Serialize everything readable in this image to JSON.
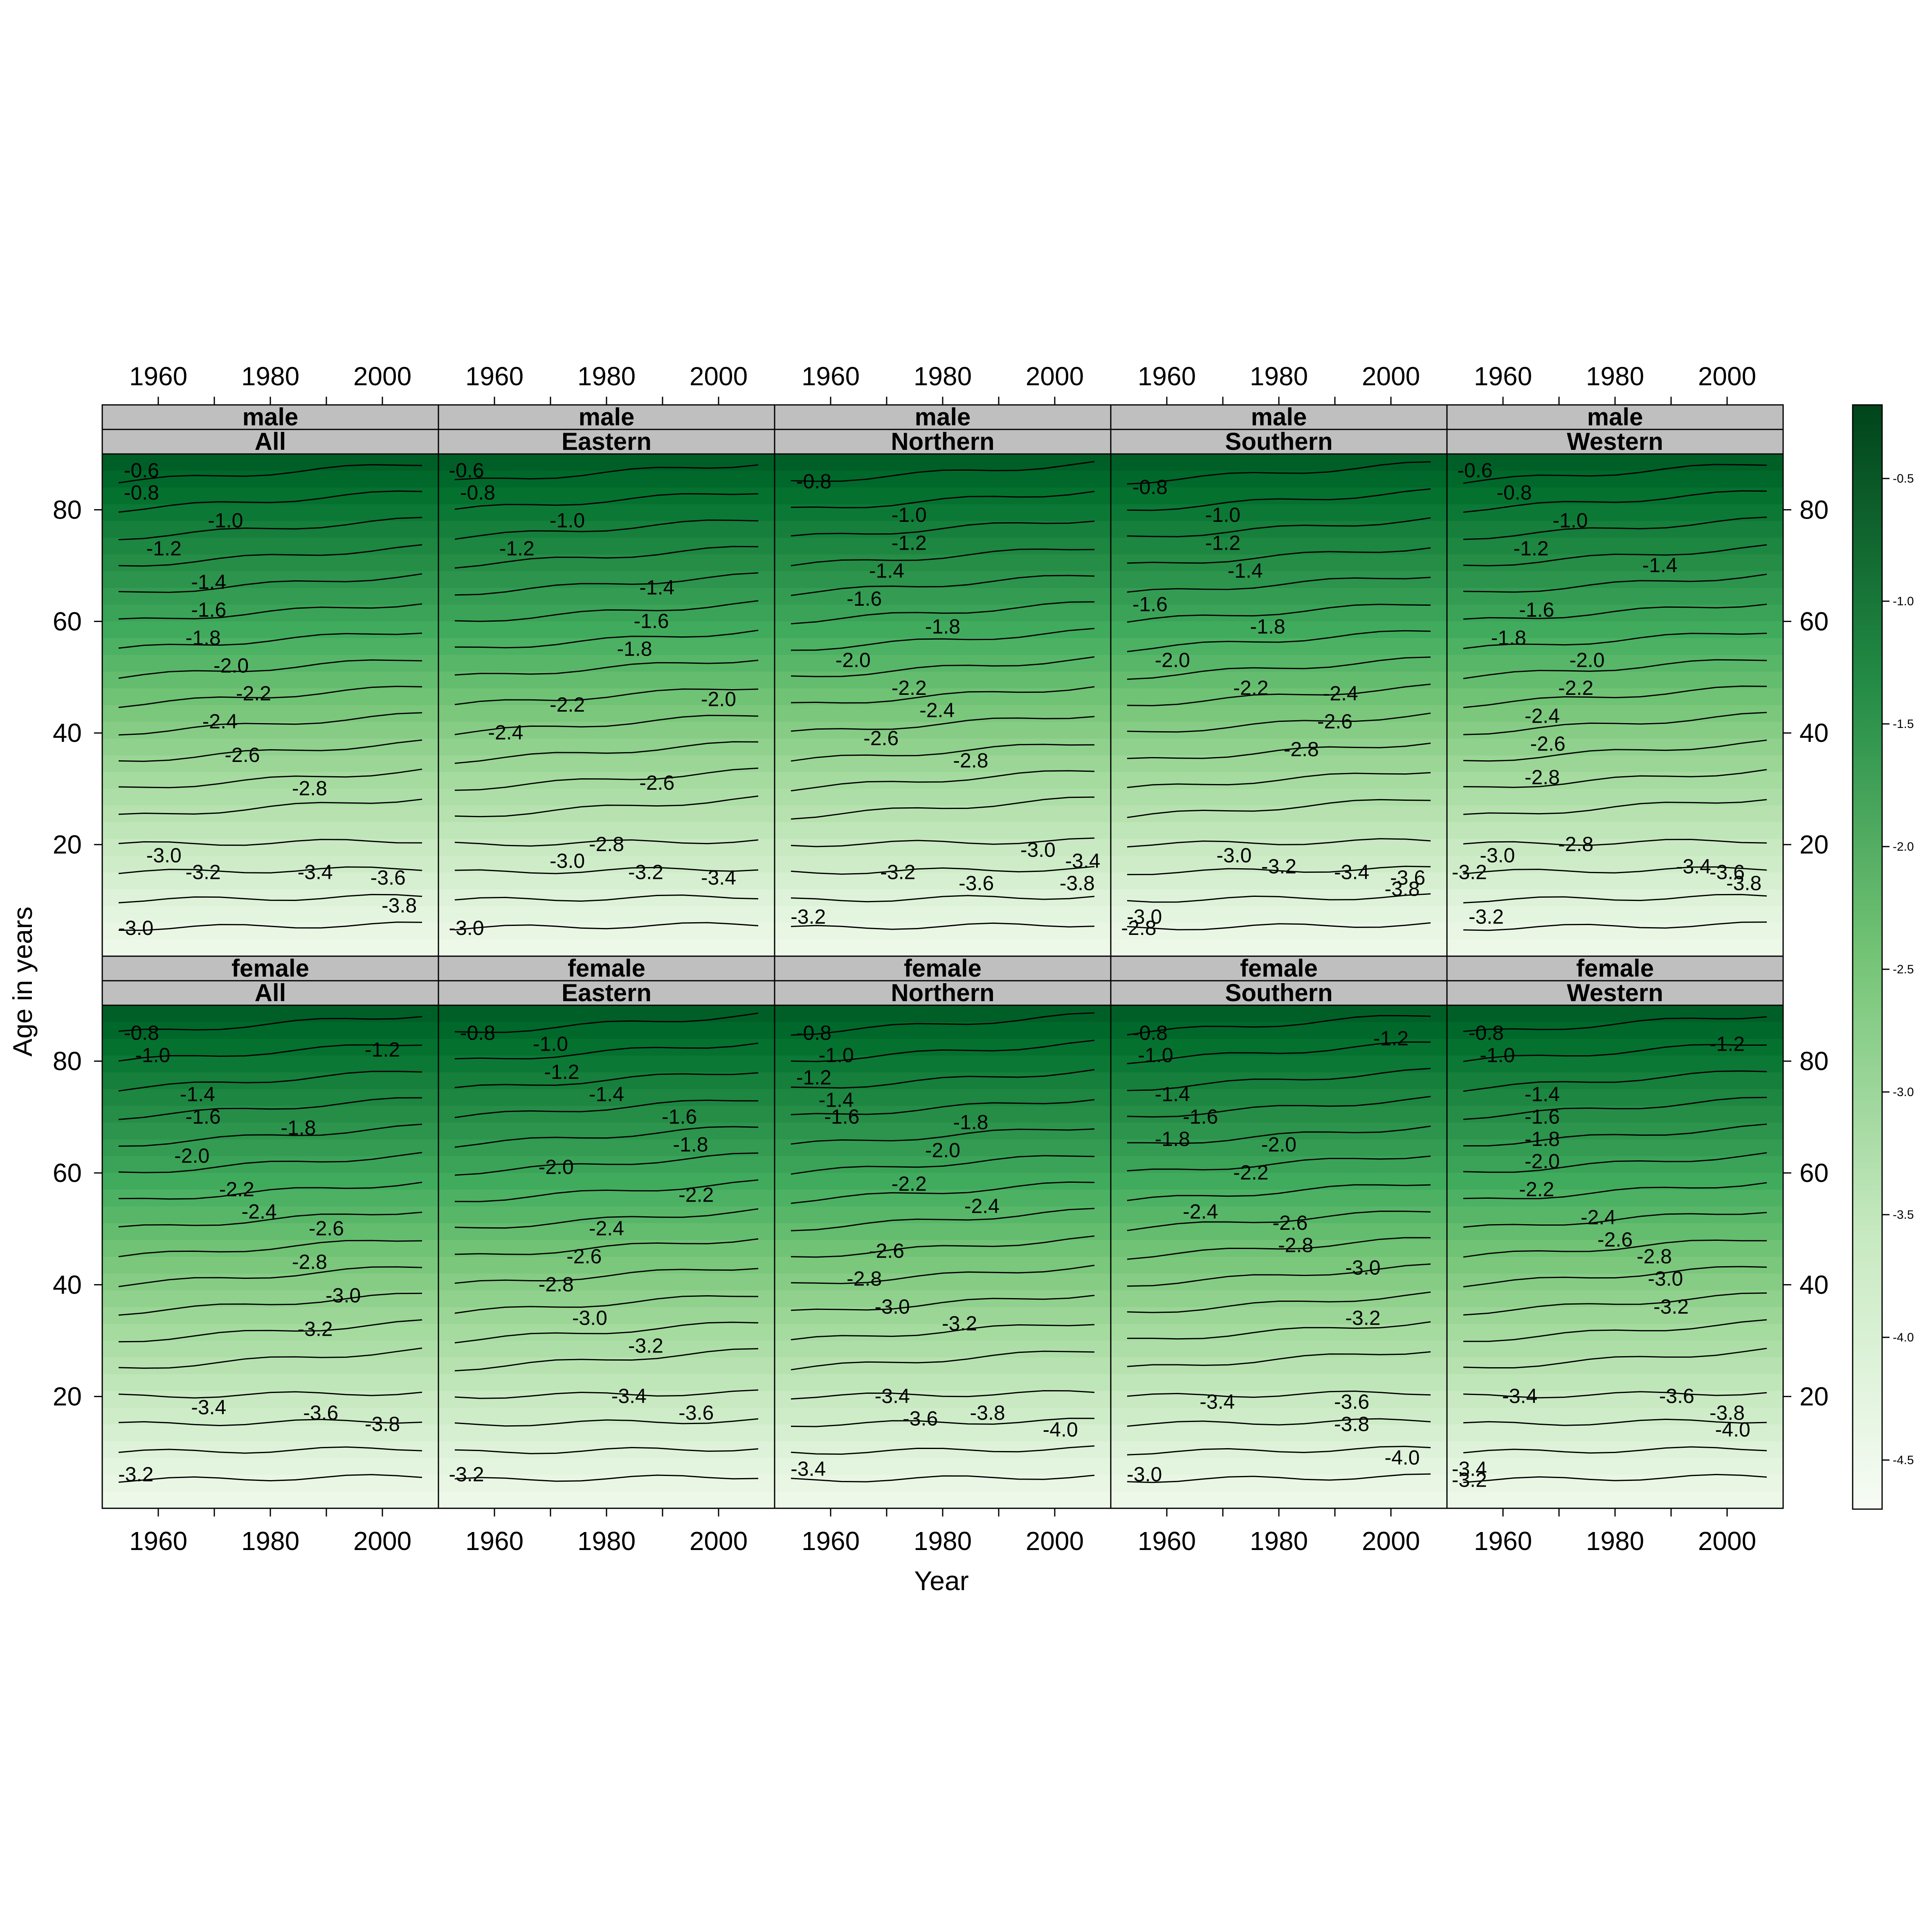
{
  "chart_data": {
    "type": "heatmap",
    "xlabel": "Year",
    "ylabel": "Age in years",
    "xlim": [
      1950,
      2010
    ],
    "ylim": [
      0,
      90
    ],
    "x_ticks": [
      "1960",
      "1980",
      "2000"
    ],
    "y_ticks": [
      "20",
      "40",
      "60",
      "80"
    ],
    "legend": {
      "position": "right",
      "ticks": [
        "-0.5",
        "-1.0",
        "-1.5",
        "-2.0",
        "-2.5",
        "-3.0",
        "-3.5",
        "-4.0",
        "-4.5"
      ],
      "range": [
        -4.7,
        -0.2
      ],
      "color_low": "#f7fcf5",
      "color_high": "#00441b"
    },
    "panels": [
      {
        "sex": "male",
        "region": "All",
        "contour_labels": [
          {
            "label": "-0.6",
            "year": 1957,
            "age": 87
          },
          {
            "label": "-0.8",
            "year": 1957,
            "age": 83
          },
          {
            "label": "-1.0",
            "year": 1972,
            "age": 78
          },
          {
            "label": "-1.2",
            "year": 1961,
            "age": 73
          },
          {
            "label": "-1.4",
            "year": 1969,
            "age": 67
          },
          {
            "label": "-1.6",
            "year": 1969,
            "age": 62
          },
          {
            "label": "-1.8",
            "year": 1968,
            "age": 57
          },
          {
            "label": "-2.0",
            "year": 1973,
            "age": 52
          },
          {
            "label": "-2.2",
            "year": 1977,
            "age": 47
          },
          {
            "label": "-2.4",
            "year": 1971,
            "age": 42
          },
          {
            "label": "-2.6",
            "year": 1975,
            "age": 36
          },
          {
            "label": "-2.8",
            "year": 1987,
            "age": 30
          },
          {
            "label": "-3.0",
            "year": 1961,
            "age": 18
          },
          {
            "label": "-3.2",
            "year": 1968,
            "age": 15
          },
          {
            "label": "-3.4",
            "year": 1988,
            "age": 15
          },
          {
            "label": "-3.6",
            "year": 2001,
            "age": 14
          },
          {
            "label": "-3.8",
            "year": 2003,
            "age": 9
          },
          {
            "label": "-3.0",
            "year": 1956,
            "age": 5
          }
        ]
      },
      {
        "sex": "male",
        "region": "Eastern",
        "contour_labels": [
          {
            "label": "-0.6",
            "year": 1955,
            "age": 87
          },
          {
            "label": "-0.8",
            "year": 1957,
            "age": 83
          },
          {
            "label": "-1.0",
            "year": 1973,
            "age": 78
          },
          {
            "label": "-1.2",
            "year": 1964,
            "age": 73
          },
          {
            "label": "-1.4",
            "year": 1989,
            "age": 66
          },
          {
            "label": "-1.6",
            "year": 1988,
            "age": 60
          },
          {
            "label": "-1.8",
            "year": 1985,
            "age": 55
          },
          {
            "label": "-2.0",
            "year": 2000,
            "age": 46
          },
          {
            "label": "-2.2",
            "year": 1973,
            "age": 45
          },
          {
            "label": "-2.4",
            "year": 1962,
            "age": 40
          },
          {
            "label": "-2.6",
            "year": 1989,
            "age": 31
          },
          {
            "label": "-2.8",
            "year": 1980,
            "age": 20
          },
          {
            "label": "-3.0",
            "year": 1973,
            "age": 17
          },
          {
            "label": "-3.2",
            "year": 1987,
            "age": 15
          },
          {
            "label": "-3.4",
            "year": 2000,
            "age": 14
          },
          {
            "label": "-3.0",
            "year": 1955,
            "age": 5
          }
        ]
      },
      {
        "sex": "male",
        "region": "Northern",
        "contour_labels": [
          {
            "label": "-0.8",
            "year": 1957,
            "age": 85
          },
          {
            "label": "-1.0",
            "year": 1974,
            "age": 79
          },
          {
            "label": "-1.2",
            "year": 1974,
            "age": 74
          },
          {
            "label": "-1.4",
            "year": 1970,
            "age": 69
          },
          {
            "label": "-1.6",
            "year": 1966,
            "age": 64
          },
          {
            "label": "-1.8",
            "year": 1980,
            "age": 59
          },
          {
            "label": "-2.0",
            "year": 1964,
            "age": 53
          },
          {
            "label": "-2.2",
            "year": 1974,
            "age": 48
          },
          {
            "label": "-2.4",
            "year": 1979,
            "age": 44
          },
          {
            "label": "-2.6",
            "year": 1969,
            "age": 39
          },
          {
            "label": "-2.8",
            "year": 1985,
            "age": 35
          },
          {
            "label": "-3.0",
            "year": 1997,
            "age": 19
          },
          {
            "label": "-3.2",
            "year": 1972,
            "age": 15
          },
          {
            "label": "-3.4",
            "year": 2005,
            "age": 17
          },
          {
            "label": "-3.6",
            "year": 1986,
            "age": 13
          },
          {
            "label": "-3.8",
            "year": 2004,
            "age": 13
          },
          {
            "label": "-3.2",
            "year": 1956,
            "age": 7
          }
        ]
      },
      {
        "sex": "male",
        "region": "Southern",
        "contour_labels": [
          {
            "label": "-0.8",
            "year": 1957,
            "age": 84
          },
          {
            "label": "-1.0",
            "year": 1970,
            "age": 79
          },
          {
            "label": "-1.2",
            "year": 1970,
            "age": 74
          },
          {
            "label": "-1.4",
            "year": 1974,
            "age": 69
          },
          {
            "label": "-1.6",
            "year": 1957,
            "age": 63
          },
          {
            "label": "-1.8",
            "year": 1978,
            "age": 59
          },
          {
            "label": "-2.0",
            "year": 1961,
            "age": 53
          },
          {
            "label": "-2.2",
            "year": 1975,
            "age": 48
          },
          {
            "label": "-2.4",
            "year": 1991,
            "age": 47
          },
          {
            "label": "-2.6",
            "year": 1990,
            "age": 42
          },
          {
            "label": "-2.8",
            "year": 1984,
            "age": 37
          },
          {
            "label": "-3.0",
            "year": 1972,
            "age": 18
          },
          {
            "label": "-3.2",
            "year": 1980,
            "age": 16
          },
          {
            "label": "-3.4",
            "year": 1993,
            "age": 15
          },
          {
            "label": "-3.6",
            "year": 2003,
            "age": 14
          },
          {
            "label": "-3.8",
            "year": 2002,
            "age": 12
          },
          {
            "label": "-3.0",
            "year": 1956,
            "age": 7
          },
          {
            "label": "-2.8",
            "year": 1955,
            "age": 5
          }
        ]
      },
      {
        "sex": "male",
        "region": "Western",
        "contour_labels": [
          {
            "label": "-0.6",
            "year": 1955,
            "age": 87
          },
          {
            "label": "-0.8",
            "year": 1962,
            "age": 83
          },
          {
            "label": "-1.0",
            "year": 1972,
            "age": 78
          },
          {
            "label": "-1.2",
            "year": 1965,
            "age": 73
          },
          {
            "label": "-1.4",
            "year": 1988,
            "age": 70
          },
          {
            "label": "-1.6",
            "year": 1966,
            "age": 62
          },
          {
            "label": "-1.8",
            "year": 1961,
            "age": 57
          },
          {
            "label": "-2.0",
            "year": 1975,
            "age": 53
          },
          {
            "label": "-2.2",
            "year": 1973,
            "age": 48
          },
          {
            "label": "-2.4",
            "year": 1967,
            "age": 43
          },
          {
            "label": "-2.6",
            "year": 1968,
            "age": 38
          },
          {
            "label": "-2.8",
            "year": 1967,
            "age": 32
          },
          {
            "label": "-2.8",
            "year": 1973,
            "age": 20
          },
          {
            "label": "-3.0",
            "year": 1959,
            "age": 18
          },
          {
            "label": "-3.2",
            "year": 1954,
            "age": 15
          },
          {
            "label": "-3.4",
            "year": 1994,
            "age": 16
          },
          {
            "label": "-3.6",
            "year": 2000,
            "age": 15
          },
          {
            "label": "-3.8",
            "year": 2003,
            "age": 13
          },
          {
            "label": "-3.2",
            "year": 1957,
            "age": 7
          }
        ]
      },
      {
        "sex": "female",
        "region": "All",
        "contour_labels": [
          {
            "label": "-0.8",
            "year": 1957,
            "age": 85
          },
          {
            "label": "-1.0",
            "year": 1959,
            "age": 81
          },
          {
            "label": "-1.2",
            "year": 2000,
            "age": 82
          },
          {
            "label": "-1.4",
            "year": 1967,
            "age": 74
          },
          {
            "label": "-1.6",
            "year": 1968,
            "age": 70
          },
          {
            "label": "-1.8",
            "year": 1985,
            "age": 68
          },
          {
            "label": "-2.0",
            "year": 1966,
            "age": 63
          },
          {
            "label": "-2.2",
            "year": 1974,
            "age": 57
          },
          {
            "label": "-2.4",
            "year": 1978,
            "age": 53
          },
          {
            "label": "-2.6",
            "year": 1990,
            "age": 50
          },
          {
            "label": "-2.8",
            "year": 1987,
            "age": 44
          },
          {
            "label": "-3.0",
            "year": 1993,
            "age": 38
          },
          {
            "label": "-3.2",
            "year": 1988,
            "age": 32
          },
          {
            "label": "-3.4",
            "year": 1969,
            "age": 18
          },
          {
            "label": "-3.6",
            "year": 1989,
            "age": 17
          },
          {
            "label": "-3.8",
            "year": 2000,
            "age": 15
          },
          {
            "label": "-3.2",
            "year": 1956,
            "age": 6
          }
        ]
      },
      {
        "sex": "female",
        "region": "Eastern",
        "contour_labels": [
          {
            "label": "-0.8",
            "year": 1957,
            "age": 85
          },
          {
            "label": "-1.0",
            "year": 1970,
            "age": 83
          },
          {
            "label": "-1.2",
            "year": 1972,
            "age": 78
          },
          {
            "label": "-1.4",
            "year": 1980,
            "age": 74
          },
          {
            "label": "-1.6",
            "year": 1993,
            "age": 70
          },
          {
            "label": "-1.8",
            "year": 1995,
            "age": 65
          },
          {
            "label": "-2.0",
            "year": 1971,
            "age": 61
          },
          {
            "label": "-2.2",
            "year": 1996,
            "age": 56
          },
          {
            "label": "-2.4",
            "year": 1980,
            "age": 50
          },
          {
            "label": "-2.6",
            "year": 1976,
            "age": 45
          },
          {
            "label": "-2.8",
            "year": 1971,
            "age": 40
          },
          {
            "label": "-3.0",
            "year": 1977,
            "age": 34
          },
          {
            "label": "-3.2",
            "year": 1987,
            "age": 29
          },
          {
            "label": "-3.4",
            "year": 1984,
            "age": 20
          },
          {
            "label": "-3.6",
            "year": 1996,
            "age": 17
          },
          {
            "label": "-3.2",
            "year": 1955,
            "age": 6
          }
        ]
      },
      {
        "sex": "female",
        "region": "Northern",
        "contour_labels": [
          {
            "label": "-0.8",
            "year": 1957,
            "age": 85
          },
          {
            "label": "-1.0",
            "year": 1961,
            "age": 81
          },
          {
            "label": "-1.2",
            "year": 1957,
            "age": 77
          },
          {
            "label": "-1.4",
            "year": 1961,
            "age": 73
          },
          {
            "label": "-1.6",
            "year": 1962,
            "age": 70
          },
          {
            "label": "-1.8",
            "year": 1985,
            "age": 69
          },
          {
            "label": "-2.0",
            "year": 1980,
            "age": 64
          },
          {
            "label": "-2.2",
            "year": 1974,
            "age": 58
          },
          {
            "label": "-2.4",
            "year": 1987,
            "age": 54
          },
          {
            "label": "-2.6",
            "year": 1970,
            "age": 46
          },
          {
            "label": "-2.8",
            "year": 1966,
            "age": 41
          },
          {
            "label": "-3.0",
            "year": 1971,
            "age": 36
          },
          {
            "label": "-3.2",
            "year": 1983,
            "age": 33
          },
          {
            "label": "-3.4",
            "year": 1971,
            "age": 20
          },
          {
            "label": "-3.6",
            "year": 1976,
            "age": 16
          },
          {
            "label": "-3.8",
            "year": 1988,
            "age": 17
          },
          {
            "label": "-4.0",
            "year": 2001,
            "age": 14
          },
          {
            "label": "-3.4",
            "year": 1956,
            "age": 7
          }
        ]
      },
      {
        "sex": "female",
        "region": "Southern",
        "contour_labels": [
          {
            "label": "-0.8",
            "year": 1957,
            "age": 85
          },
          {
            "label": "-1.0",
            "year": 1958,
            "age": 81
          },
          {
            "label": "-1.2",
            "year": 2000,
            "age": 84
          },
          {
            "label": "-1.4",
            "year": 1961,
            "age": 74
          },
          {
            "label": "-1.6",
            "year": 1966,
            "age": 70
          },
          {
            "label": "-1.8",
            "year": 1961,
            "age": 66
          },
          {
            "label": "-2.0",
            "year": 1980,
            "age": 65
          },
          {
            "label": "-2.2",
            "year": 1975,
            "age": 60
          },
          {
            "label": "-2.4",
            "year": 1966,
            "age": 53
          },
          {
            "label": "-2.6",
            "year": 1982,
            "age": 51
          },
          {
            "label": "-2.8",
            "year": 1983,
            "age": 47
          },
          {
            "label": "-3.0",
            "year": 1995,
            "age": 43
          },
          {
            "label": "-3.2",
            "year": 1995,
            "age": 34
          },
          {
            "label": "-3.4",
            "year": 1969,
            "age": 19
          },
          {
            "label": "-3.6",
            "year": 1993,
            "age": 19
          },
          {
            "label": "-3.8",
            "year": 1993,
            "age": 15
          },
          {
            "label": "-4.0",
            "year": 2002,
            "age": 9
          },
          {
            "label": "-3.0",
            "year": 1956,
            "age": 6
          }
        ]
      },
      {
        "sex": "female",
        "region": "Western",
        "contour_labels": [
          {
            "label": "-0.8",
            "year": 1957,
            "age": 85
          },
          {
            "label": "-1.0",
            "year": 1959,
            "age": 81
          },
          {
            "label": "-1.2",
            "year": 2000,
            "age": 83
          },
          {
            "label": "-1.4",
            "year": 1967,
            "age": 74
          },
          {
            "label": "-1.6",
            "year": 1967,
            "age": 70
          },
          {
            "label": "-1.8",
            "year": 1967,
            "age": 66
          },
          {
            "label": "-2.0",
            "year": 1967,
            "age": 62
          },
          {
            "label": "-2.2",
            "year": 1966,
            "age": 57
          },
          {
            "label": "-2.4",
            "year": 1977,
            "age": 52
          },
          {
            "label": "-2.6",
            "year": 1980,
            "age": 48
          },
          {
            "label": "-2.8",
            "year": 1987,
            "age": 45
          },
          {
            "label": "-3.0",
            "year": 1989,
            "age": 41
          },
          {
            "label": "-3.2",
            "year": 1990,
            "age": 36
          },
          {
            "label": "-3.4",
            "year": 1963,
            "age": 20
          },
          {
            "label": "-3.6",
            "year": 1991,
            "age": 20
          },
          {
            "label": "-3.8",
            "year": 2000,
            "age": 17
          },
          {
            "label": "-4.0",
            "year": 2001,
            "age": 14
          },
          {
            "label": "-3.4",
            "year": 1954,
            "age": 7
          },
          {
            "label": "-3.2",
            "year": 1954,
            "age": 5
          }
        ]
      }
    ]
  }
}
